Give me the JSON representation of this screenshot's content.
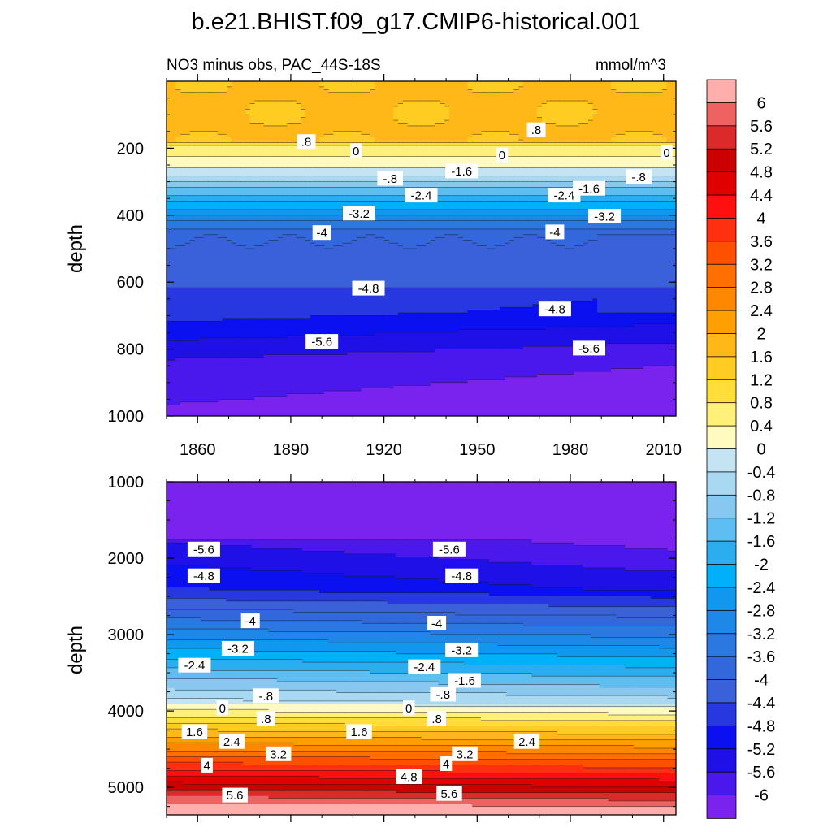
{
  "title": "b.e21.BHIST.f09_g17.CMIP6-historical.001",
  "chart_data": [
    {
      "type": "heatmap",
      "subtitle": "NO3 minus obs, PAC_44S-18S",
      "units": "mmol/m^3",
      "ylabel": "depth",
      "xlabel": "",
      "xlim": [
        1850,
        2014
      ],
      "ylim": [
        0,
        1000
      ],
      "y_reversed": true,
      "xticks": [
        "1860",
        "1890",
        "1920",
        "1950",
        "1980",
        "2010"
      ],
      "xtick_values": [
        1860,
        1890,
        1920,
        1950,
        1980,
        2010
      ],
      "yticks": [
        "200",
        "400",
        "600",
        "800",
        "1000"
      ],
      "ytick_values": [
        200,
        400,
        600,
        800,
        1000
      ],
      "contour_labels": [
        {
          "text": ".8",
          "x": 1895,
          "y": 180
        },
        {
          "text": "0",
          "x": 1911,
          "y": 207
        },
        {
          "text": "-.8",
          "x": 1922,
          "y": 290
        },
        {
          "text": "-1.6",
          "x": 1945,
          "y": 268
        },
        {
          "text": "-2.4",
          "x": 1932,
          "y": 340
        },
        {
          "text": "-3.2",
          "x": 1912,
          "y": 394
        },
        {
          "text": "-4",
          "x": 1900,
          "y": 452
        },
        {
          "text": "-4.8",
          "x": 1915,
          "y": 618
        },
        {
          "text": "-5.6",
          "x": 1900,
          "y": 777
        },
        {
          "text": "0",
          "x": 1958,
          "y": 220
        },
        {
          "text": ".8",
          "x": 1969,
          "y": 145
        },
        {
          "text": "-2.4",
          "x": 1978,
          "y": 340
        },
        {
          "text": "-1.6",
          "x": 1986,
          "y": 320
        },
        {
          "text": "-.8",
          "x": 2002,
          "y": 285
        },
        {
          "text": "-3.2",
          "x": 1991,
          "y": 403
        },
        {
          "text": "0",
          "x": 2011,
          "y": 212
        },
        {
          "text": "-4",
          "x": 1975,
          "y": 450
        },
        {
          "text": "-4.8",
          "x": 1975,
          "y": 680
        },
        {
          "text": "-5.6",
          "x": 1986,
          "y": 797
        }
      ]
    },
    {
      "type": "heatmap",
      "ylabel": "depth",
      "xlabel": "",
      "xlim": [
        1850,
        2014
      ],
      "ylim": [
        1000,
        5360
      ],
      "y_reversed": true,
      "yticks": [
        "1000",
        "2000",
        "3000",
        "4000",
        "5000"
      ],
      "ytick_values": [
        1000,
        2000,
        3000,
        4000,
        5000
      ],
      "contour_labels": [
        {
          "text": "-5.6",
          "x": 1862,
          "y": 1880
        },
        {
          "text": "-4.8",
          "x": 1862,
          "y": 2230
        },
        {
          "text": "-4",
          "x": 1877,
          "y": 2820
        },
        {
          "text": "-3.2",
          "x": 1873,
          "y": 3180
        },
        {
          "text": "-2.4",
          "x": 1859,
          "y": 3400
        },
        {
          "text": "-.8",
          "x": 1882,
          "y": 3800
        },
        {
          "text": "0",
          "x": 1868,
          "y": 3960
        },
        {
          "text": ".8",
          "x": 1882,
          "y": 4100
        },
        {
          "text": "1.6",
          "x": 1859,
          "y": 4270
        },
        {
          "text": "2.4",
          "x": 1871,
          "y": 4400
        },
        {
          "text": "3.2",
          "x": 1886,
          "y": 4560
        },
        {
          "text": "4",
          "x": 1863,
          "y": 4710
        },
        {
          "text": "5.6",
          "x": 1872,
          "y": 5100
        },
        {
          "text": "-5.6",
          "x": 1941,
          "y": 1880
        },
        {
          "text": "-4.8",
          "x": 1945,
          "y": 2230
        },
        {
          "text": "-4",
          "x": 1937,
          "y": 2850
        },
        {
          "text": "-3.2",
          "x": 1945,
          "y": 3200
        },
        {
          "text": "-2.4",
          "x": 1933,
          "y": 3420
        },
        {
          "text": "-1.6",
          "x": 1946,
          "y": 3600
        },
        {
          "text": "-.8",
          "x": 1939,
          "y": 3780
        },
        {
          "text": "0",
          "x": 1928,
          "y": 3960
        },
        {
          "text": ".8",
          "x": 1937,
          "y": 4100
        },
        {
          "text": "1.6",
          "x": 1912,
          "y": 4270
        },
        {
          "text": "2.4",
          "x": 1966,
          "y": 4400
        },
        {
          "text": "3.2",
          "x": 1946,
          "y": 4560
        },
        {
          "text": "4",
          "x": 1940,
          "y": 4690
        },
        {
          "text": "4.8",
          "x": 1928,
          "y": 4860
        },
        {
          "text": "5.6",
          "x": 1941,
          "y": 5080
        }
      ]
    }
  ],
  "colorbar": {
    "labels": [
      "6",
      "5.6",
      "5.2",
      "4.8",
      "4.4",
      "4",
      "3.6",
      "3.2",
      "2.8",
      "2.4",
      "2",
      "1.6",
      "1.2",
      "0.8",
      "0.4",
      "0",
      "-0.4",
      "-0.8",
      "-1.2",
      "-1.6",
      "-2",
      "-2.4",
      "-2.8",
      "-3.2",
      "-3.6",
      "-4",
      "-4.4",
      "-4.8",
      "-5.2",
      "-5.6",
      "-6"
    ],
    "colors": [
      "#ffaeae",
      "#ef6262",
      "#dc2a2a",
      "#cc0000",
      "#e00000",
      "#ff1010",
      "#ff3010",
      "#ff5000",
      "#ff7000",
      "#ff8800",
      "#ffa000",
      "#ffb818",
      "#ffcc22",
      "#ffde3a",
      "#fff07a",
      "#fffac0",
      "#c4e4f4",
      "#a9d8f2",
      "#88c8f0",
      "#5ebef2",
      "#2aaef0",
      "#00b0f8",
      "#1098ee",
      "#1e88e8",
      "#2a78e0",
      "#3268dc",
      "#3a60da",
      "#2838e0",
      "#0a10f0",
      "#2010e8",
      "#4a18ec",
      "#7a22ee"
    ]
  }
}
